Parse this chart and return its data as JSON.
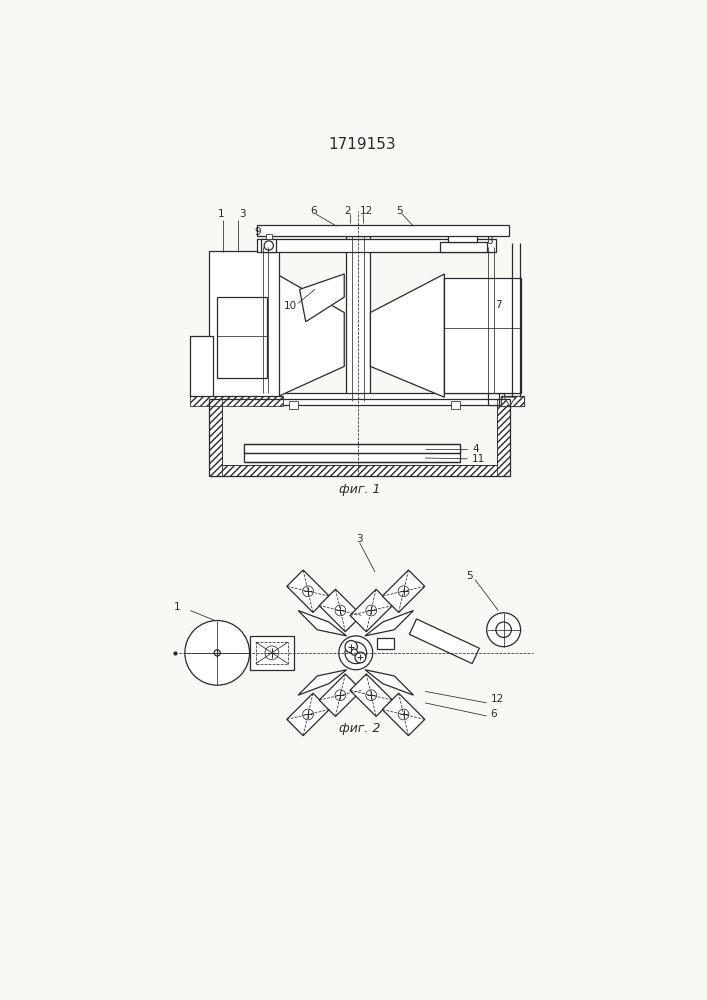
{
  "title": "1719153",
  "fig1_caption": "фиг. 1",
  "fig2_caption": "фиг. 2",
  "line_color": "#2a2a2a",
  "bg_color": "#f8f8f5",
  "lw": 0.9,
  "tlw": 0.55
}
